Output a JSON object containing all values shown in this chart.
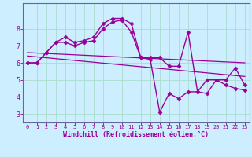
{
  "xlabel": "Windchill (Refroidissement éolien,°C)",
  "background_color": "#cceeff",
  "grid_color": "#aaddcc",
  "line_color": "#990099",
  "spine_color": "#666699",
  "xlim": [
    -0.5,
    23.5
  ],
  "ylim": [
    2.5,
    9.5
  ],
  "yticks": [
    3,
    4,
    5,
    6,
    7,
    8
  ],
  "xticks": [
    0,
    1,
    2,
    3,
    4,
    5,
    6,
    7,
    8,
    9,
    10,
    11,
    12,
    13,
    14,
    15,
    16,
    17,
    18,
    19,
    20,
    21,
    22,
    23
  ],
  "series": [
    {
      "x": [
        0,
        1,
        2,
        3,
        4,
        5,
        6,
        7,
        8,
        9,
        10,
        11,
        12,
        13,
        14,
        15,
        16,
        17,
        18,
        19,
        20,
        21,
        22,
        23
      ],
      "y": [
        6.0,
        6.0,
        6.6,
        7.2,
        7.5,
        7.2,
        7.3,
        7.5,
        8.3,
        8.6,
        8.6,
        8.3,
        6.3,
        6.3,
        6.3,
        5.8,
        5.8,
        7.8,
        4.3,
        4.2,
        5.0,
        5.0,
        5.7,
        4.7
      ],
      "marker": "D",
      "markersize": 2.5,
      "linewidth": 1.0
    },
    {
      "x": [
        0,
        1,
        2,
        3,
        4,
        5,
        6,
        7,
        8,
        9,
        10,
        11,
        12,
        13,
        14,
        15,
        16,
        17,
        18,
        19,
        20,
        21,
        22,
        23
      ],
      "y": [
        6.0,
        6.0,
        6.6,
        7.2,
        7.2,
        7.0,
        7.2,
        7.3,
        8.0,
        8.4,
        8.5,
        7.8,
        6.3,
        6.2,
        3.1,
        4.2,
        3.9,
        4.3,
        4.3,
        5.0,
        5.0,
        4.7,
        4.5,
        4.4
      ],
      "marker": "D",
      "markersize": 2.5,
      "linewidth": 1.0
    },
    {
      "x": [
        0,
        23
      ],
      "y": [
        6.6,
        6.0
      ],
      "marker": null,
      "markersize": 0,
      "linewidth": 0.9
    },
    {
      "x": [
        0,
        23
      ],
      "y": [
        6.4,
        5.2
      ],
      "marker": null,
      "markersize": 0,
      "linewidth": 0.9
    }
  ],
  "xlabel_fontsize": 6,
  "xtick_fontsize": 5,
  "ytick_fontsize": 6,
  "figure_width": 3.2,
  "figure_height": 2.0,
  "dpi": 100
}
